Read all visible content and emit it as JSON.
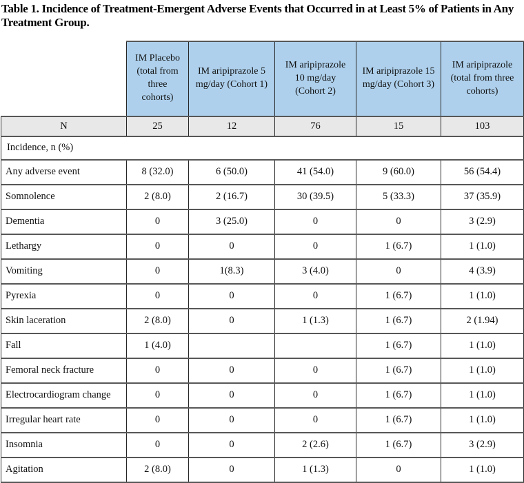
{
  "title": "Table 1.  Incidence of Treatment-Emergent Adverse Events that Occurred in at Least 5% of Patients in Any Treatment Group.",
  "colors": {
    "header_bg": "#aed0ec",
    "n_row_bg": "#e8e8e8",
    "border_vertical": "#262626",
    "border_horizontal": "#575757",
    "text": "#111111"
  },
  "table": {
    "column_headers": [
      "IM Placebo (total from three cohorts)",
      "IM aripiprazole 5 mg/day (Cohort 1)",
      "IM aripiprazole 10 mg/day (Cohort 2)",
      "IM aripiprazole 15 mg/day (Cohort 3)",
      "IM aripiprazole (total from three cohorts)"
    ],
    "n_row": {
      "label": "N",
      "values": [
        "25",
        "12",
        "76",
        "15",
        "103"
      ]
    },
    "section_row": "Incidence, n (%)",
    "rows": [
      {
        "label": "Any adverse event",
        "values": [
          "8 (32.0)",
          "6 (50.0)",
          "41 (54.0)",
          "9 (60.0)",
          "56 (54.4)"
        ]
      },
      {
        "label": "Somnolence",
        "values": [
          "2 (8.0)",
          "2 (16.7)",
          "30 (39.5)",
          "5 (33.3)",
          "37 (35.9)"
        ]
      },
      {
        "label": "Dementia",
        "values": [
          "0",
          "3 (25.0)",
          "0",
          "0",
          "3 (2.9)"
        ]
      },
      {
        "label": "Lethargy",
        "values": [
          "0",
          "0",
          "0",
          "1 (6.7)",
          "1 (1.0)"
        ]
      },
      {
        "label": "Vomiting",
        "values": [
          "0",
          "1(8.3)",
          "3 (4.0)",
          "0",
          "4 (3.9)"
        ]
      },
      {
        "label": "Pyrexia",
        "values": [
          "0",
          "0",
          "0",
          "1 (6.7)",
          "1 (1.0)"
        ]
      },
      {
        "label": "Skin laceration",
        "values": [
          "2 (8.0)",
          "0",
          "1 (1.3)",
          "1 (6.7)",
          "2 (1.94)"
        ]
      },
      {
        "label": "Fall",
        "values": [
          "1 (4.0)",
          "",
          "",
          "1 (6.7)",
          "1 (1.0)"
        ]
      },
      {
        "label": "Femoral neck fracture",
        "values": [
          "0",
          "0",
          "0",
          "1 (6.7)",
          "1 (1.0)"
        ]
      },
      {
        "label": "Electrocardiogram change",
        "values": [
          "0",
          "0",
          "0",
          "1 (6.7)",
          "1 (1.0)"
        ]
      },
      {
        "label": "Irregular heart rate",
        "values": [
          "0",
          "0",
          "0",
          "1 (6.7)",
          "1 (1.0)"
        ]
      },
      {
        "label": "Insomnia",
        "values": [
          "0",
          "0",
          "2 (2.6)",
          "1 (6.7)",
          "3 (2.9)"
        ]
      },
      {
        "label": "Agitation",
        "values": [
          "2 (8.0)",
          "0",
          "1 (1.3)",
          "0",
          "1 (1.0)"
        ]
      }
    ]
  }
}
